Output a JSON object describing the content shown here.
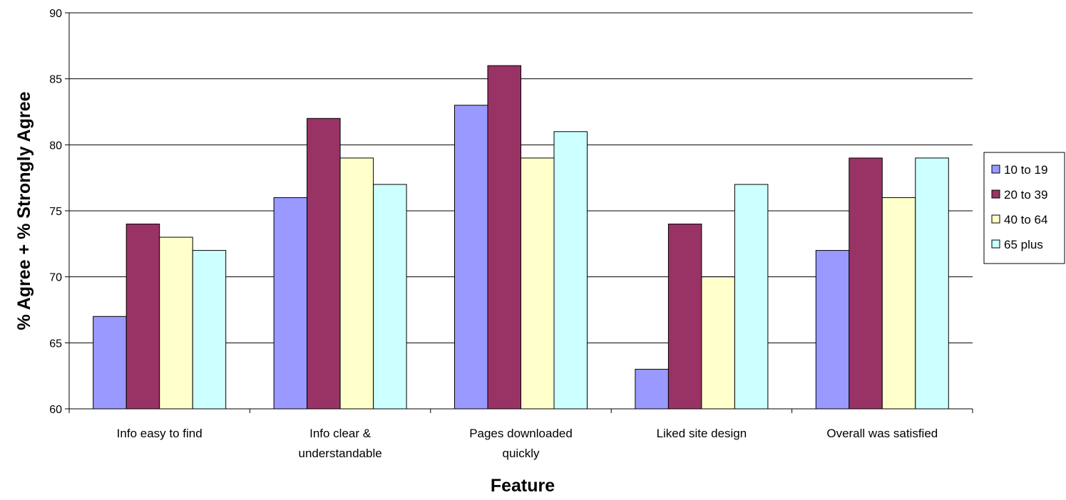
{
  "chart_data": {
    "type": "bar",
    "title": "",
    "xlabel": "Feature",
    "ylabel": "% Agree + % Strongly Agree",
    "ylim": [
      60,
      90
    ],
    "yticks": [
      60,
      65,
      70,
      75,
      80,
      85,
      90
    ],
    "grid": true,
    "legend_position": "right",
    "categories": [
      [
        "Info easy to find"
      ],
      [
        "Info clear &",
        "understandable"
      ],
      [
        "Pages downloaded",
        "quickly"
      ],
      [
        "Liked site design"
      ],
      [
        "Overall was satisfied"
      ]
    ],
    "series": [
      {
        "name": "10 to 19",
        "color": "#9999FF",
        "values": [
          67,
          76,
          83,
          63,
          72
        ]
      },
      {
        "name": "20 to 39",
        "color": "#993366",
        "values": [
          74,
          82,
          86,
          74,
          79
        ]
      },
      {
        "name": "40 to 64",
        "color": "#FFFFCC",
        "values": [
          73,
          79,
          79,
          70,
          76
        ]
      },
      {
        "name": "65 plus",
        "color": "#CCFFFF",
        "values": [
          72,
          77,
          81,
          77,
          79
        ]
      }
    ]
  }
}
